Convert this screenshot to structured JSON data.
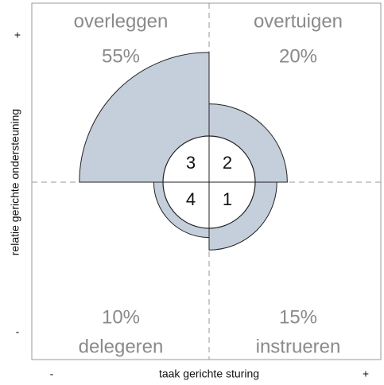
{
  "chart_data": {
    "type": "polar",
    "categories": [
      "overleggen",
      "overtuigen",
      "delegeren",
      "instrueren"
    ],
    "values": [
      55,
      20,
      10,
      15
    ],
    "value_labels": [
      "55%",
      "20%",
      "10%",
      "15%"
    ],
    "quadrant_numbers": [
      "3",
      "2",
      "4",
      "1"
    ],
    "color": "#c5cedb",
    "x_label": "taak gerichte sturing",
    "y_label": "relatie gerichte ondersteuning",
    "x_axis_ends": [
      "-",
      "+"
    ],
    "y_axis_ends": [
      "+",
      "-"
    ]
  }
}
